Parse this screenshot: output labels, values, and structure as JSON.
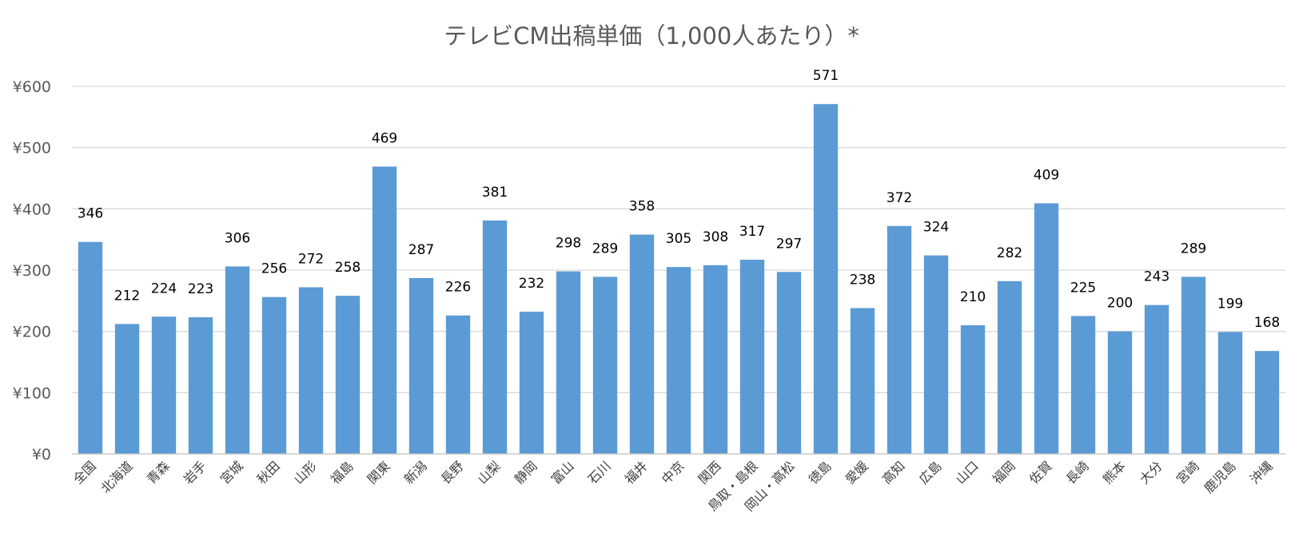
{
  "chart_data": {
    "type": "bar",
    "title": "テレビCM出稿単価（1,000人あたり）*",
    "xlabel": "",
    "ylabel": "",
    "ylim": [
      0,
      600
    ],
    "y_ticks": [
      0,
      100,
      200,
      300,
      400,
      500,
      600
    ],
    "y_tick_labels": [
      "¥0",
      "¥100",
      "¥200",
      "¥300",
      "¥400",
      "¥500",
      "¥600"
    ],
    "grid": true,
    "legend": "none",
    "bar_color": "#5b9bd5",
    "categories": [
      "全国",
      "北海道",
      "青森",
      "岩手",
      "宮城",
      "秋田",
      "山形",
      "福島",
      "関東",
      "新潟",
      "長野",
      "山梨",
      "静岡",
      "富山",
      "石川",
      "福井",
      "中京",
      "関西",
      "鳥取・島根",
      "岡山・高松",
      "徳島",
      "愛媛",
      "高知",
      "広島",
      "山口",
      "福岡",
      "佐賀",
      "長崎",
      "熊本",
      "大分",
      "宮崎",
      "鹿児島",
      "沖縄"
    ],
    "values": [
      346,
      212,
      224,
      223,
      306,
      256,
      272,
      258,
      469,
      287,
      226,
      381,
      232,
      298,
      289,
      358,
      305,
      308,
      317,
      297,
      571,
      238,
      372,
      324,
      210,
      282,
      409,
      225,
      200,
      243,
      289,
      199,
      168
    ],
    "data_labels": [
      "346",
      "212",
      "224",
      "223",
      "306",
      "256",
      "272",
      "258",
      "469",
      "287",
      "226",
      "381",
      "232",
      "298",
      "289",
      "358",
      "305",
      "308",
      "317",
      "297",
      "571",
      "238",
      "372",
      "324",
      "210",
      "282",
      "409",
      "225",
      "200",
      "243",
      "289",
      "199",
      "168"
    ]
  }
}
